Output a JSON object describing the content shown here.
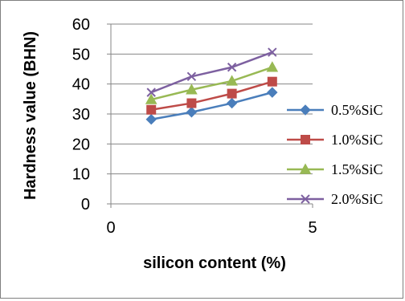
{
  "chart_data": {
    "type": "line",
    "title": "",
    "xlabel": "silicon content (%)",
    "ylabel": "Hardness value (BHN)",
    "xlim": [
      0,
      5
    ],
    "ylim": [
      0,
      60
    ],
    "x_ticks": [
      0,
      5
    ],
    "y_ticks": [
      0,
      10,
      20,
      30,
      40,
      50,
      60
    ],
    "grid": "horizontal major",
    "legend_position": "right",
    "x": [
      1,
      2,
      3,
      4
    ],
    "series": [
      {
        "name": "0.5%SiC",
        "values": [
          28.2,
          30.6,
          33.6,
          37.2
        ],
        "color": "#4a7ebb",
        "marker": "diamond"
      },
      {
        "name": "1.0%SiC",
        "values": [
          31.4,
          33.6,
          36.8,
          40.8
        ],
        "color": "#be4b48",
        "marker": "square"
      },
      {
        "name": "1.5%SiC",
        "values": [
          34.8,
          38.1,
          41.0,
          45.6
        ],
        "color": "#98b954",
        "marker": "triangle"
      },
      {
        "name": "2.0%SiC",
        "values": [
          37.2,
          42.5,
          45.6,
          50.6
        ],
        "color": "#7d60a0",
        "marker": "x"
      }
    ]
  }
}
